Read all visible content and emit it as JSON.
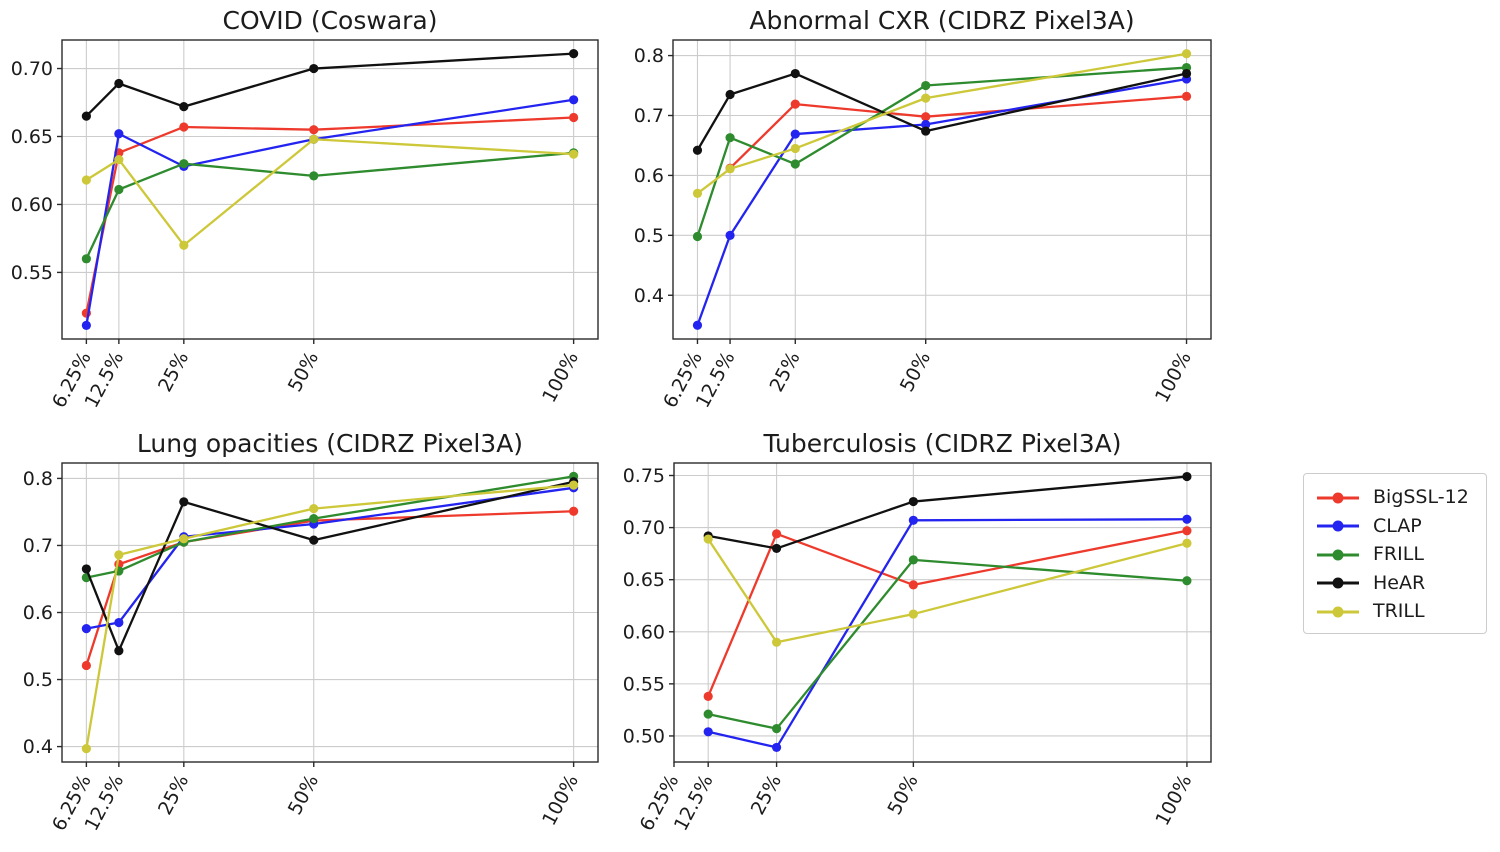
{
  "figure": {
    "background": "#ffffff"
  },
  "palette": {
    "BigSSL-12": "#ee3a2c",
    "CLAP": "#2424f0",
    "FRILL": "#2e8b2e",
    "HeAR": "#111111",
    "TRILL": "#cdc839"
  },
  "legend": {
    "position": "right",
    "items": [
      {
        "label": "BigSSL-12",
        "color": "#ee3a2c"
      },
      {
        "label": "CLAP",
        "color": "#2424f0"
      },
      {
        "label": "FRILL",
        "color": "#2e8b2e"
      },
      {
        "label": "HeAR",
        "color": "#111111"
      },
      {
        "label": "TRILL",
        "color": "#cdc839"
      }
    ]
  },
  "chart_data": [
    {
      "type": "line",
      "title": "COVID (Coswara)",
      "xlabel": "",
      "ylabel": "",
      "grid": true,
      "xlim": [
        1.56,
        104.69
      ],
      "ylim": [
        0.501,
        0.721
      ],
      "x_tick_values": [
        6.25,
        12.5,
        25,
        50,
        100
      ],
      "x_tick_labels": [
        "6.25%",
        "12.5%",
        "25%",
        "50%",
        "100%"
      ],
      "y_tick_values": [
        0.55,
        0.6,
        0.65,
        0.7
      ],
      "y_tick_labels": [
        "0.55",
        "0.60",
        "0.65",
        "0.70"
      ],
      "series": [
        {
          "name": "BigSSL-12",
          "x": [
            6.25,
            12.5,
            25,
            50,
            100
          ],
          "y": [
            0.52,
            0.638,
            0.657,
            0.655,
            0.664
          ]
        },
        {
          "name": "CLAP",
          "x": [
            6.25,
            12.5,
            25,
            50,
            100
          ],
          "y": [
            0.511,
            0.652,
            0.628,
            0.648,
            0.677
          ]
        },
        {
          "name": "FRILL",
          "x": [
            6.25,
            12.5,
            25,
            50,
            100
          ],
          "y": [
            0.56,
            0.611,
            0.63,
            0.621,
            0.638
          ]
        },
        {
          "name": "HeAR",
          "x": [
            6.25,
            12.5,
            25,
            50,
            100
          ],
          "y": [
            0.665,
            0.689,
            0.672,
            0.7,
            0.711
          ]
        },
        {
          "name": "TRILL",
          "x": [
            6.25,
            12.5,
            25,
            50,
            100
          ],
          "y": [
            0.618,
            0.633,
            0.57,
            0.648,
            0.637
          ]
        }
      ]
    },
    {
      "type": "line",
      "title": "Abnormal CXR (CIDRZ Pixel3A)",
      "xlabel": "",
      "ylabel": "",
      "grid": true,
      "xlim": [
        1.56,
        104.69
      ],
      "ylim": [
        0.327,
        0.826
      ],
      "x_tick_values": [
        6.25,
        12.5,
        25,
        50,
        100
      ],
      "x_tick_labels": [
        "6.25%",
        "12.5%",
        "25%",
        "50%",
        "100%"
      ],
      "y_tick_values": [
        0.4,
        0.5,
        0.6,
        0.7,
        0.8
      ],
      "y_tick_labels": [
        "0.4",
        "0.5",
        "0.6",
        "0.7",
        "0.8"
      ],
      "series": [
        {
          "name": "BigSSL-12",
          "x": [
            12.5,
            25,
            50,
            100
          ],
          "y": [
            0.612,
            0.719,
            0.698,
            0.732
          ]
        },
        {
          "name": "CLAP",
          "x": [
            6.25,
            12.5,
            25,
            50,
            100
          ],
          "y": [
            0.35,
            0.5,
            0.669,
            0.685,
            0.761
          ]
        },
        {
          "name": "FRILL",
          "x": [
            6.25,
            12.5,
            25,
            50,
            100
          ],
          "y": [
            0.498,
            0.663,
            0.619,
            0.75,
            0.78
          ]
        },
        {
          "name": "HeAR",
          "x": [
            6.25,
            12.5,
            25,
            50,
            100
          ],
          "y": [
            0.642,
            0.735,
            0.77,
            0.674,
            0.77
          ]
        },
        {
          "name": "TRILL",
          "x": [
            6.25,
            12.5,
            25,
            50,
            100
          ],
          "y": [
            0.57,
            0.611,
            0.645,
            0.729,
            0.803
          ]
        }
      ]
    },
    {
      "type": "line",
      "title": "Lung opacities (CIDRZ Pixel3A)",
      "xlabel": "",
      "ylabel": "",
      "grid": true,
      "xlim": [
        1.56,
        104.69
      ],
      "ylim": [
        0.377,
        0.823
      ],
      "x_tick_values": [
        6.25,
        12.5,
        25,
        50,
        100
      ],
      "x_tick_labels": [
        "6.25%",
        "12.5%",
        "25%",
        "50%",
        "100%"
      ],
      "y_tick_values": [
        0.4,
        0.5,
        0.6,
        0.7,
        0.8
      ],
      "y_tick_labels": [
        "0.4",
        "0.5",
        "0.6",
        "0.7",
        "0.8"
      ],
      "series": [
        {
          "name": "BigSSL-12",
          "x": [
            6.25,
            12.5,
            25,
            50,
            100
          ],
          "y": [
            0.521,
            0.672,
            0.705,
            0.737,
            0.751
          ]
        },
        {
          "name": "CLAP",
          "x": [
            6.25,
            12.5,
            25,
            50,
            100
          ],
          "y": [
            0.576,
            0.585,
            0.713,
            0.732,
            0.786
          ]
        },
        {
          "name": "FRILL",
          "x": [
            6.25,
            12.5,
            25,
            50,
            100
          ],
          "y": [
            0.652,
            0.662,
            0.705,
            0.74,
            0.803
          ]
        },
        {
          "name": "HeAR",
          "x": [
            6.25,
            12.5,
            25,
            50,
            100
          ],
          "y": [
            0.665,
            0.543,
            0.765,
            0.708,
            0.795
          ]
        },
        {
          "name": "TRILL",
          "x": [
            6.25,
            12.5,
            25,
            50,
            100
          ],
          "y": [
            0.397,
            0.686,
            0.71,
            0.755,
            0.79
          ]
        }
      ]
    },
    {
      "type": "line",
      "title": "Tuberculosis (CIDRZ Pixel3A)",
      "xlabel": "",
      "ylabel": "",
      "grid": true,
      "xlim": [
        6.25,
        104.4
      ],
      "ylim": [
        0.475,
        0.762
      ],
      "x_tick_values": [
        6.25,
        12.5,
        25,
        50,
        100
      ],
      "x_tick_labels": [
        "6.25%",
        "12.5%",
        "25%",
        "50%",
        "100%"
      ],
      "y_tick_values": [
        0.5,
        0.55,
        0.6,
        0.65,
        0.7,
        0.75
      ],
      "y_tick_labels": [
        "0.50",
        "0.55",
        "0.60",
        "0.65",
        "0.70",
        "0.75"
      ],
      "series": [
        {
          "name": "BigSSL-12",
          "x": [
            12.5,
            25,
            50,
            100
          ],
          "y": [
            0.538,
            0.694,
            0.645,
            0.697
          ]
        },
        {
          "name": "CLAP",
          "x": [
            12.5,
            25,
            50,
            100
          ],
          "y": [
            0.504,
            0.489,
            0.707,
            0.708
          ]
        },
        {
          "name": "FRILL",
          "x": [
            12.5,
            25,
            50,
            100
          ],
          "y": [
            0.521,
            0.507,
            0.669,
            0.649
          ]
        },
        {
          "name": "HeAR",
          "x": [
            12.5,
            25,
            50,
            100
          ],
          "y": [
            0.692,
            0.68,
            0.725,
            0.749
          ]
        },
        {
          "name": "TRILL",
          "x": [
            12.5,
            25,
            50,
            100
          ],
          "y": [
            0.689,
            0.59,
            0.617,
            0.685
          ]
        }
      ]
    }
  ]
}
